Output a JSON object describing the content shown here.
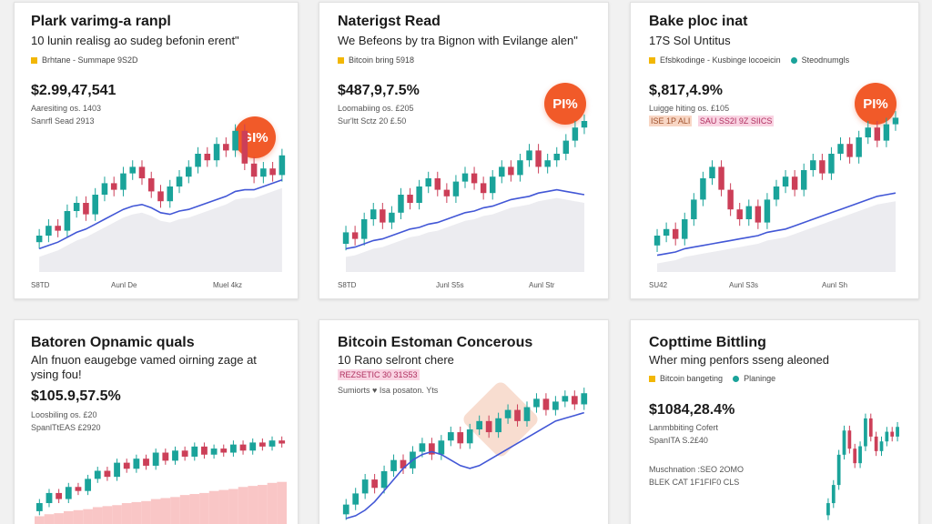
{
  "colors": {
    "up": "#1aa39a",
    "down": "#cc3f58",
    "ma": "#4257d6",
    "badge": "#f15a29",
    "accent_yellow": "#f2b705",
    "accent_teal": "#1aa39a"
  },
  "cards": [
    {
      "title": "Plark varimg-a ranpl",
      "subtitle": "10 lunin realisg ao sudeg befonin erent\"",
      "legend": [
        {
          "marker": "square",
          "color": "#f2b705",
          "label": "Brhtane - Summape 9S2D"
        }
      ],
      "price": "$2.99,47,541",
      "meta": [
        "Aaresiting os. 1403",
        "Sanrfl Sead 2913"
      ],
      "badge": "GI%",
      "x_ticks": [
        "S8TD",
        "Aunl De",
        "Muel 4kz"
      ]
    },
    {
      "title": "Naterigst Read",
      "subtitle": "We Befeons by tra Bignon with Evilange alen\"",
      "legend": [
        {
          "marker": "square",
          "color": "#f2b705",
          "label": "Bitcoin bring 5918"
        }
      ],
      "price": "$487,9,7.5%",
      "meta": [
        "Loomabiing os. £205",
        "Sur'ltt Sctz 20 £.50"
      ],
      "badge": "PI%",
      "x_ticks": [
        "S8TD",
        "Junl S5s",
        "Aunl Str"
      ]
    },
    {
      "title": "Bake ploc inat",
      "subtitle": "17S Sol Untitus",
      "legend": [
        {
          "marker": "square",
          "color": "#f2b705",
          "label": "Efsbkodinge - Kusbinge locoeicin"
        },
        {
          "marker": "dot",
          "color": "#1aa39a",
          "label": "Steodnumgls"
        }
      ],
      "price": "$,817,4.9%",
      "meta": [
        "Luigge hiting os. £105"
      ],
      "tags": [
        "ISE 1P ALI",
        "SAU SS2I 9Z SIICS"
      ],
      "badge": "PI%",
      "x_ticks": [
        "SU42",
        "Aunl S3s",
        "Aunl Sh"
      ]
    },
    {
      "title": "Batoren Opnamic quals",
      "subtitle": "Aln fnuon eaugebge vamed oirning zage at",
      "subtitle2": "ysing fou!",
      "price": "$105.9,57.5%",
      "meta": [
        "Loosbiling os. £20",
        "SpanlTtEAS £2920"
      ]
    },
    {
      "title": "Bitcoin Estoman Concerous",
      "subtitle": "10 Rano selront chere",
      "tags": [
        "REZSETIC 30 31S53"
      ],
      "meta": [
        "Sumiorts ♥ Isa posaton. Yts"
      ]
    },
    {
      "title": "Copttime Bittling",
      "subtitle": "Wher ming penfors sseng aleoned",
      "legend": [
        {
          "marker": "square",
          "color": "#f2b705",
          "label": "Bitcoin bangeting"
        },
        {
          "marker": "dot",
          "color": "#1aa39a",
          "label": "Planinge"
        }
      ],
      "price": "$1084,28.4%",
      "meta": [
        "Lanmbbiting Cofert",
        "SpanITA S.2£40",
        "",
        "Muschnation :SEO 2OMO",
        "BLEK CAT 1F1FIF0 CLS"
      ]
    }
  ],
  "chart_data": [
    {
      "type": "line",
      "candles": [
        [
          0.16,
          0.2
        ],
        [
          0.2,
          0.26
        ],
        [
          0.26,
          0.23
        ],
        [
          0.23,
          0.35
        ],
        [
          0.35,
          0.4
        ],
        [
          0.4,
          0.33
        ],
        [
          0.33,
          0.45
        ],
        [
          0.45,
          0.52
        ],
        [
          0.52,
          0.48
        ],
        [
          0.48,
          0.58
        ],
        [
          0.58,
          0.62
        ],
        [
          0.62,
          0.55
        ],
        [
          0.55,
          0.47
        ],
        [
          0.47,
          0.41
        ],
        [
          0.41,
          0.5
        ],
        [
          0.5,
          0.56
        ],
        [
          0.56,
          0.62
        ],
        [
          0.62,
          0.7
        ],
        [
          0.7,
          0.66
        ],
        [
          0.66,
          0.76
        ],
        [
          0.76,
          0.72
        ],
        [
          0.72,
          0.84
        ],
        [
          0.84,
          0.64
        ],
        [
          0.64,
          0.56
        ],
        [
          0.56,
          0.61
        ],
        [
          0.61,
          0.57
        ],
        [
          0.57,
          0.69
        ]
      ],
      "ma": [
        0.12,
        0.14,
        0.16,
        0.19,
        0.22,
        0.24,
        0.27,
        0.3,
        0.33,
        0.36,
        0.38,
        0.39,
        0.37,
        0.34,
        0.33,
        0.35,
        0.36,
        0.38,
        0.4,
        0.42,
        0.44,
        0.47,
        0.48,
        0.48,
        0.5,
        0.52,
        0.54
      ],
      "area": true
    },
    {
      "type": "line",
      "candles": [
        [
          0.15,
          0.22
        ],
        [
          0.22,
          0.18
        ],
        [
          0.18,
          0.3
        ],
        [
          0.3,
          0.36
        ],
        [
          0.36,
          0.28
        ],
        [
          0.28,
          0.34
        ],
        [
          0.34,
          0.45
        ],
        [
          0.45,
          0.4
        ],
        [
          0.4,
          0.5
        ],
        [
          0.5,
          0.55
        ],
        [
          0.55,
          0.48
        ],
        [
          0.48,
          0.44
        ],
        [
          0.44,
          0.53
        ],
        [
          0.53,
          0.58
        ],
        [
          0.58,
          0.52
        ],
        [
          0.52,
          0.46
        ],
        [
          0.46,
          0.56
        ],
        [
          0.56,
          0.62
        ],
        [
          0.62,
          0.57
        ],
        [
          0.57,
          0.66
        ],
        [
          0.66,
          0.72
        ],
        [
          0.72,
          0.62
        ],
        [
          0.62,
          0.66
        ],
        [
          0.66,
          0.7
        ],
        [
          0.7,
          0.78
        ],
        [
          0.78,
          0.86
        ],
        [
          0.86,
          0.9
        ]
      ],
      "ma": [
        0.12,
        0.13,
        0.15,
        0.17,
        0.18,
        0.2,
        0.22,
        0.24,
        0.25,
        0.27,
        0.28,
        0.3,
        0.32,
        0.34,
        0.35,
        0.37,
        0.38,
        0.4,
        0.42,
        0.43,
        0.44,
        0.46,
        0.47,
        0.48,
        0.47,
        0.46,
        0.45
      ],
      "area": true
    },
    {
      "type": "line",
      "candles": [
        [
          0.14,
          0.2
        ],
        [
          0.2,
          0.24
        ],
        [
          0.24,
          0.18
        ],
        [
          0.18,
          0.3
        ],
        [
          0.3,
          0.42
        ],
        [
          0.42,
          0.55
        ],
        [
          0.55,
          0.62
        ],
        [
          0.62,
          0.48
        ],
        [
          0.48,
          0.36
        ],
        [
          0.36,
          0.3
        ],
        [
          0.3,
          0.38
        ],
        [
          0.38,
          0.28
        ],
        [
          0.28,
          0.42
        ],
        [
          0.42,
          0.5
        ],
        [
          0.5,
          0.56
        ],
        [
          0.56,
          0.48
        ],
        [
          0.48,
          0.6
        ],
        [
          0.6,
          0.66
        ],
        [
          0.66,
          0.58
        ],
        [
          0.58,
          0.7
        ],
        [
          0.7,
          0.76
        ],
        [
          0.76,
          0.68
        ],
        [
          0.68,
          0.8
        ],
        [
          0.8,
          0.86
        ],
        [
          0.86,
          0.78
        ],
        [
          0.78,
          0.88
        ],
        [
          0.88,
          0.92
        ]
      ],
      "ma": [
        0.08,
        0.09,
        0.1,
        0.12,
        0.13,
        0.14,
        0.15,
        0.16,
        0.17,
        0.18,
        0.19,
        0.2,
        0.22,
        0.23,
        0.24,
        0.26,
        0.28,
        0.3,
        0.32,
        0.34,
        0.36,
        0.38,
        0.4,
        0.42,
        0.44,
        0.45,
        0.46
      ],
      "area": true
    },
    {
      "type": "bar",
      "candles": [
        [
          0.1,
          0.18
        ],
        [
          0.18,
          0.28
        ],
        [
          0.28,
          0.22
        ],
        [
          0.22,
          0.34
        ],
        [
          0.34,
          0.3
        ],
        [
          0.3,
          0.42
        ],
        [
          0.42,
          0.5
        ],
        [
          0.5,
          0.44
        ],
        [
          0.44,
          0.58
        ],
        [
          0.58,
          0.52
        ],
        [
          0.52,
          0.62
        ],
        [
          0.62,
          0.55
        ],
        [
          0.55,
          0.68
        ],
        [
          0.68,
          0.6
        ],
        [
          0.6,
          0.7
        ],
        [
          0.7,
          0.64
        ],
        [
          0.64,
          0.74
        ],
        [
          0.74,
          0.66
        ],
        [
          0.66,
          0.72
        ],
        [
          0.72,
          0.68
        ],
        [
          0.68,
          0.76
        ],
        [
          0.76,
          0.7
        ],
        [
          0.7,
          0.78
        ],
        [
          0.78,
          0.74
        ],
        [
          0.74,
          0.8
        ],
        [
          0.8,
          0.77
        ]
      ],
      "bars": [
        0.05,
        0.07,
        0.08,
        0.1,
        0.11,
        0.12,
        0.14,
        0.15,
        0.16,
        0.18,
        0.19,
        0.2,
        0.22,
        0.23,
        0.24,
        0.26,
        0.27,
        0.28,
        0.3,
        0.31,
        0.32,
        0.34,
        0.35,
        0.36,
        0.38,
        0.39
      ]
    },
    {
      "type": "line",
      "candles": [
        [
          0.05,
          0.12
        ],
        [
          0.12,
          0.2
        ],
        [
          0.2,
          0.3
        ],
        [
          0.3,
          0.24
        ],
        [
          0.24,
          0.36
        ],
        [
          0.36,
          0.44
        ],
        [
          0.44,
          0.38
        ],
        [
          0.38,
          0.5
        ],
        [
          0.5,
          0.56
        ],
        [
          0.56,
          0.48
        ],
        [
          0.48,
          0.58
        ],
        [
          0.58,
          0.64
        ],
        [
          0.64,
          0.56
        ],
        [
          0.56,
          0.66
        ],
        [
          0.66,
          0.72
        ],
        [
          0.72,
          0.64
        ],
        [
          0.64,
          0.74
        ],
        [
          0.74,
          0.8
        ],
        [
          0.8,
          0.72
        ],
        [
          0.72,
          0.82
        ],
        [
          0.82,
          0.88
        ],
        [
          0.88,
          0.8
        ],
        [
          0.8,
          0.86
        ],
        [
          0.86,
          0.9
        ],
        [
          0.9,
          0.84
        ],
        [
          0.84,
          0.92
        ]
      ],
      "ma": [
        0.02,
        0.04,
        0.08,
        0.14,
        0.22,
        0.3,
        0.38,
        0.44,
        0.48,
        0.5,
        0.48,
        0.44,
        0.4,
        0.38,
        0.4,
        0.44,
        0.48,
        0.52,
        0.56,
        0.6,
        0.64,
        0.68,
        0.72,
        0.74,
        0.76,
        0.78
      ]
    },
    {
      "type": "line",
      "candles": [
        [
          0.05,
          0.15
        ],
        [
          0.15,
          0.3
        ],
        [
          0.3,
          0.55
        ],
        [
          0.55,
          0.75
        ],
        [
          0.75,
          0.6
        ],
        [
          0.6,
          0.48
        ],
        [
          0.48,
          0.62
        ],
        [
          0.62,
          0.85
        ],
        [
          0.85,
          0.7
        ],
        [
          0.7,
          0.58
        ],
        [
          0.58,
          0.66
        ],
        [
          0.66,
          0.74
        ],
        [
          0.74,
          0.7
        ],
        [
          0.7,
          0.78
        ]
      ]
    }
  ]
}
